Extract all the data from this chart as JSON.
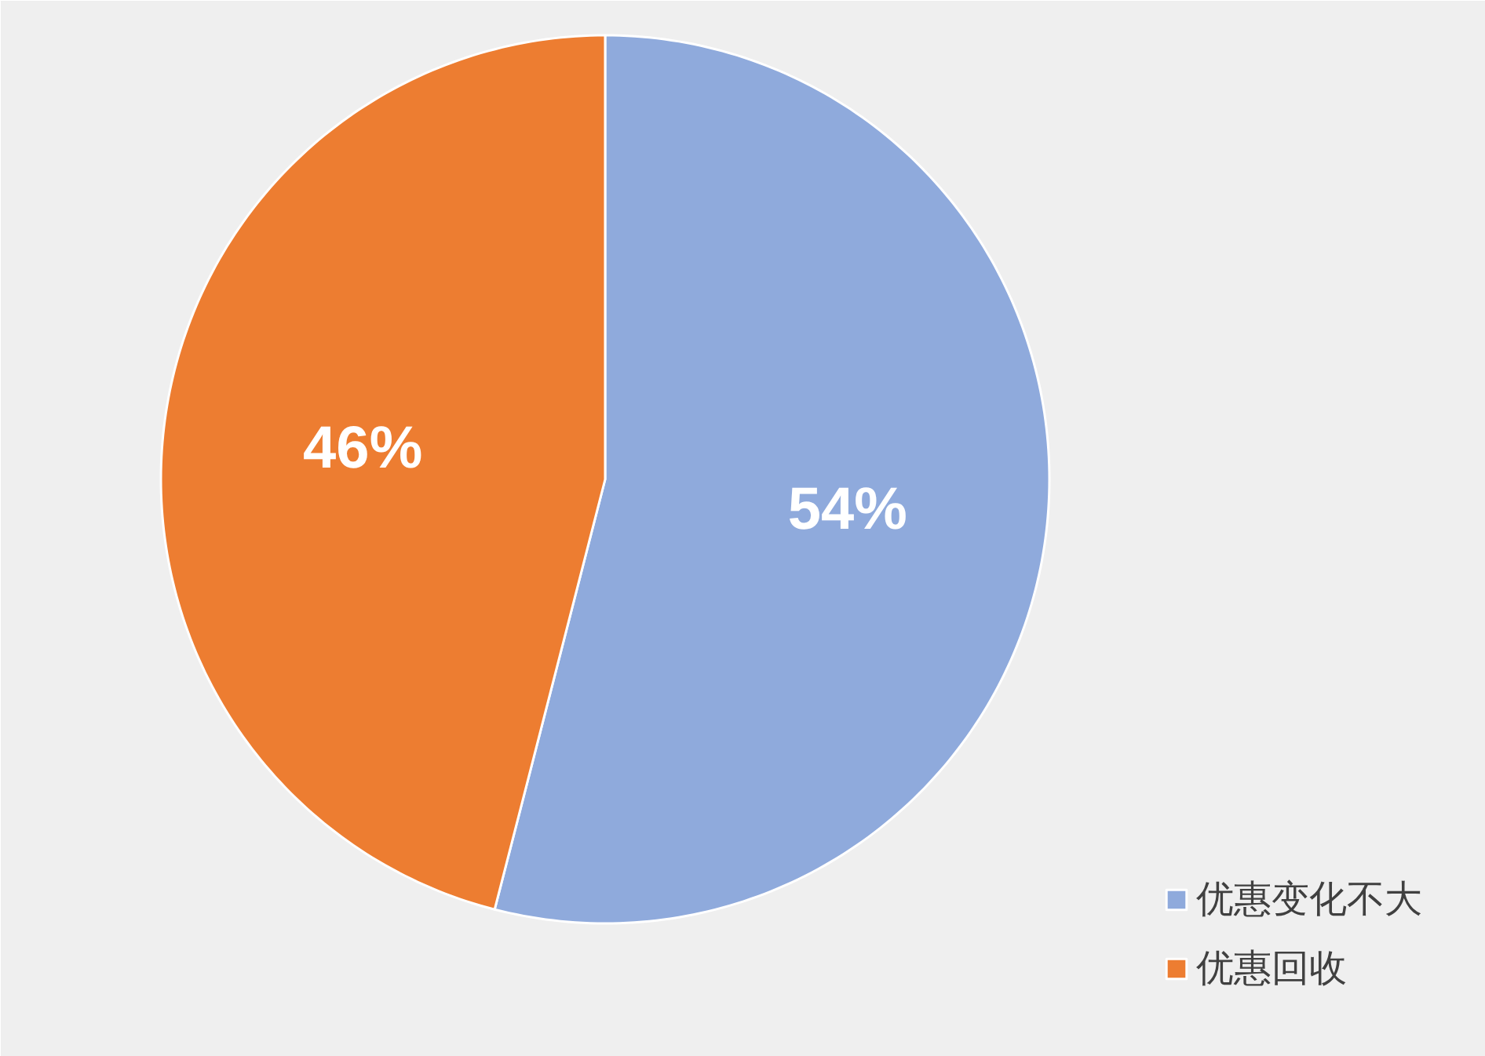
{
  "chart_data": {
    "type": "pie",
    "categories": [
      "优惠变化不大",
      "优惠回收"
    ],
    "values": [
      54,
      46
    ],
    "colors": [
      "#8faadc",
      "#ed7d31"
    ],
    "value_labels": [
      "54%",
      "46%"
    ],
    "legend": "bottom right"
  }
}
